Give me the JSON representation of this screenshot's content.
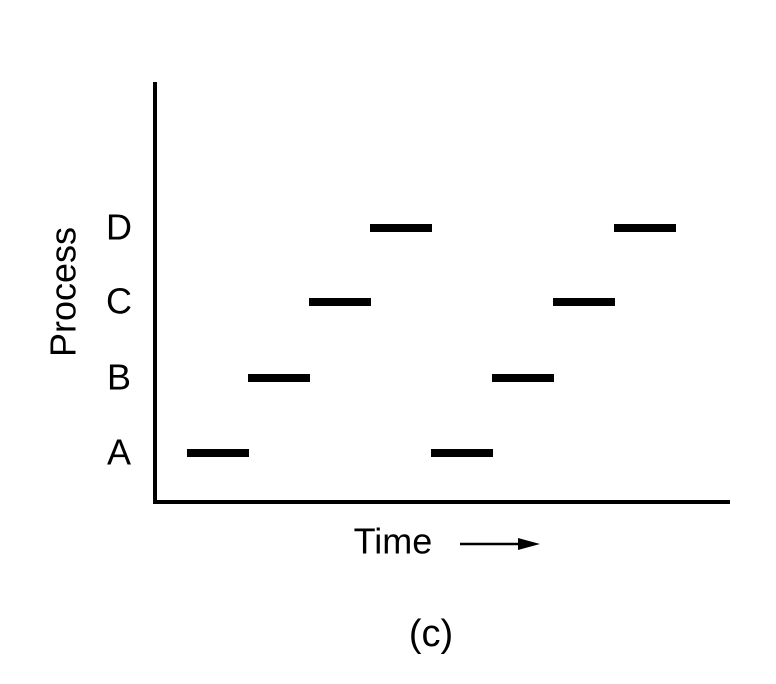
{
  "diagram": {
    "ylabel": "Process",
    "xlabel": "Time",
    "caption": "(c)",
    "processes": [
      "A",
      "B",
      "C",
      "D"
    ],
    "segments": [
      {
        "process": "A",
        "slot": 0
      },
      {
        "process": "B",
        "slot": 1
      },
      {
        "process": "C",
        "slot": 2
      },
      {
        "process": "D",
        "slot": 3
      },
      {
        "process": "A",
        "slot": 4
      },
      {
        "process": "B",
        "slot": 5
      },
      {
        "process": "C",
        "slot": 6
      },
      {
        "process": "D",
        "slot": 7
      }
    ]
  }
}
